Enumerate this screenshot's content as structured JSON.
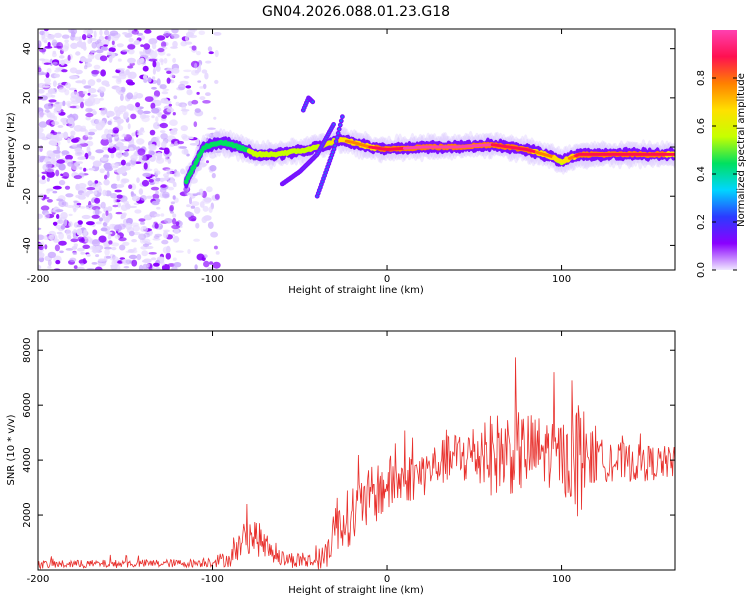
{
  "title": "GN04.2026.088.01.23.G18",
  "colors": {
    "snr_line": "#e8302c",
    "axis": "#000000",
    "background": "#ffffff"
  },
  "chart_data": [
    {
      "type": "heatmap",
      "xlabel": "Height of straight line (km)",
      "ylabel": "Frequency (Hz)",
      "xlim": [
        -200,
        165
      ],
      "ylim": [
        -50,
        48
      ],
      "xticks": [
        -200,
        -100,
        0,
        100
      ],
      "yticks": [
        -40,
        -20,
        0,
        20,
        40
      ],
      "colorbar": {
        "label": "Normalized spectral amplitude",
        "range": [
          0.0,
          1.0
        ],
        "ticks": [
          0.0,
          0.2,
          0.4,
          0.6,
          0.8
        ],
        "tick_labels": [
          "0.0",
          "0.2",
          "0.4",
          "0.6",
          "0.8"
        ],
        "colormap": [
          "#f0e8ff",
          "#8a00ff",
          "#2b3bff",
          "#00d6ff",
          "#00e060",
          "#c6ff00",
          "#ffe000",
          "#ff8000",
          "#ff1050",
          "#ff40b0"
        ]
      },
      "noise_region": {
        "x": [
          -200,
          -105
        ],
        "freq": [
          -50,
          48
        ]
      },
      "ridge": {
        "description_free": true,
        "x": [
          -115,
          -105,
          -95,
          -85,
          -75,
          -65,
          -55,
          -45,
          -35,
          -28,
          -20,
          -10,
          0,
          20,
          40,
          60,
          80,
          95,
          100,
          110,
          130,
          150,
          165
        ],
        "freq": [
          -14,
          0,
          2,
          0,
          -3,
          -3,
          -2,
          -1,
          1,
          3,
          2,
          0,
          -1,
          0,
          0,
          1,
          -1,
          -4,
          -6,
          -3,
          -3,
          -3,
          -3
        ],
        "amplitude": [
          0.35,
          0.4,
          0.45,
          0.4,
          0.5,
          0.55,
          0.5,
          0.5,
          0.6,
          0.65,
          0.75,
          0.8,
          0.85,
          0.95,
          0.95,
          0.9,
          0.85,
          0.7,
          0.6,
          0.85,
          0.9,
          0.85,
          0.8
        ]
      },
      "side_branches": [
        {
          "x": [
            -60,
            -50,
            -40,
            -30
          ],
          "freq": [
            -15,
            -10,
            -3,
            10
          ]
        },
        {
          "x": [
            -40,
            -35,
            -30,
            -25
          ],
          "freq": [
            -20,
            -10,
            0,
            14
          ]
        },
        {
          "x": [
            -48,
            -45,
            -42
          ],
          "freq": [
            15,
            20,
            18
          ]
        }
      ]
    },
    {
      "type": "line",
      "xlabel": "Height of straight line (km)",
      "ylabel": "SNR (10 * v/v)",
      "xlim": [
        -200,
        165
      ],
      "ylim": [
        0,
        8700
      ],
      "xticks": [
        -200,
        -100,
        0,
        100
      ],
      "yticks": [
        2000,
        4000,
        6000,
        8000
      ],
      "series": [
        {
          "name": "SNR",
          "envelope_x": [
            -200,
            -110,
            -90,
            -80,
            -75,
            -70,
            -60,
            -40,
            -35,
            -30,
            -25,
            -20,
            -10,
            0,
            10,
            20,
            30,
            40,
            50,
            60,
            70,
            80,
            90,
            100,
            105,
            110,
            115,
            120,
            140,
            165
          ],
          "envelope_mean": [
            200,
            250,
            400,
            1300,
            1200,
            900,
            400,
            300,
            500,
            1700,
            1800,
            2000,
            2600,
            3100,
            3300,
            3500,
            3900,
            4100,
            4200,
            4200,
            4300,
            4300,
            4300,
            4200,
            3800,
            4200,
            4100,
            4000,
            3900,
            3900
          ],
          "envelope_amp": [
            150,
            150,
            300,
            700,
            700,
            500,
            300,
            300,
            500,
            1200,
            900,
            1200,
            1100,
            1100,
            900,
            900,
            800,
            1000,
            1200,
            1500,
            1600,
            1500,
            1300,
            1300,
            1500,
            2400,
            1300,
            800,
            700,
            600
          ]
        }
      ]
    }
  ]
}
